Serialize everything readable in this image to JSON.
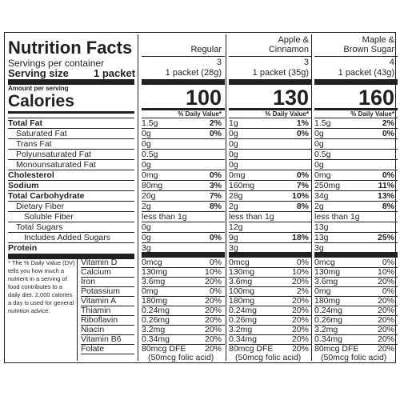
{
  "title": "Nutrition Facts",
  "servings_per_container_label": "Servings per container",
  "serving_size_label": "Serving size",
  "serving_size_value": "1 packet",
  "amount_per_serving": "Amount per serving",
  "calories_label": "Calories",
  "dv_header": "% Daily Value*",
  "columns": [
    {
      "name_line1": "Regular",
      "name_line2": "",
      "servings": "3",
      "serving_size": "1 packet (28g)",
      "calories": "100"
    },
    {
      "name_line1": "Apple &",
      "name_line2": "Cinnamon",
      "servings": "3",
      "serving_size": "1 packet (35g)",
      "calories": "130"
    },
    {
      "name_line1": "Maple &",
      "name_line2": "Brown Sugar",
      "servings": "4",
      "serving_size": "1 packet (43g)",
      "calories": "160"
    }
  ],
  "nutrients": [
    {
      "label": "Total Fat",
      "bold": true,
      "indent": 0,
      "values": [
        [
          "1.5g",
          "2%"
        ],
        [
          "1g",
          "1%"
        ],
        [
          "1.5g",
          "2%"
        ]
      ]
    },
    {
      "label": "Saturated Fat",
      "bold": false,
      "indent": 1,
      "values": [
        [
          "0g",
          "0%"
        ],
        [
          "0g",
          "0%"
        ],
        [
          "0g",
          "0%"
        ]
      ]
    },
    {
      "label": "Trans Fat",
      "bold": false,
      "indent": 1,
      "values": [
        [
          "0g",
          ""
        ],
        [
          "0g",
          ""
        ],
        [
          "0g",
          ""
        ]
      ]
    },
    {
      "label": "Polyunsaturated Fat",
      "bold": false,
      "indent": 1,
      "values": [
        [
          "0.5g",
          ""
        ],
        [
          "0g",
          ""
        ],
        [
          "0.5g",
          ""
        ]
      ]
    },
    {
      "label": "Monounsaturated Fat",
      "bold": false,
      "indent": 1,
      "values": [
        [
          "0g",
          ""
        ],
        [
          "0g",
          ""
        ],
        [
          "0g",
          ""
        ]
      ]
    },
    {
      "label": "Cholesterol",
      "bold": true,
      "indent": 0,
      "values": [
        [
          "0mg",
          "0%"
        ],
        [
          "0mg",
          "0%"
        ],
        [
          "0mg",
          "0%"
        ]
      ]
    },
    {
      "label": "Sodium",
      "bold": true,
      "indent": 0,
      "values": [
        [
          "80mg",
          "3%"
        ],
        [
          "160mg",
          "7%"
        ],
        [
          "250mg",
          "11%"
        ]
      ]
    },
    {
      "label": "Total Carbohydrate",
      "bold": true,
      "indent": 0,
      "values": [
        [
          "20g",
          "7%"
        ],
        [
          "28g",
          "10%"
        ],
        [
          "34g",
          "13%"
        ]
      ]
    },
    {
      "label": "Dietary Fiber",
      "bold": false,
      "indent": 1,
      "values": [
        [
          "2g",
          "8%"
        ],
        [
          "2g",
          "8%"
        ],
        [
          "2g",
          "8%"
        ]
      ]
    },
    {
      "label": "Soluble Fiber",
      "bold": false,
      "indent": 2,
      "values": [
        [
          "less than 1g",
          ""
        ],
        [
          "less than 1g",
          ""
        ],
        [
          "less than 1g",
          ""
        ]
      ]
    },
    {
      "label": "Total Sugars",
      "bold": false,
      "indent": 1,
      "values": [
        [
          "0g",
          ""
        ],
        [
          "12g",
          ""
        ],
        [
          "13g",
          ""
        ]
      ]
    },
    {
      "label": "Includes Added Sugars",
      "bold": false,
      "indent": 2,
      "values": [
        [
          "0g",
          "0%"
        ],
        [
          "9g",
          "18%"
        ],
        [
          "13g",
          "25%"
        ]
      ]
    },
    {
      "label": "Protein",
      "bold": true,
      "indent": 0,
      "values": [
        [
          "3g",
          ""
        ],
        [
          "3g",
          ""
        ],
        [
          "3g",
          ""
        ]
      ]
    }
  ],
  "footnote": [
    "* The % Daily Value (DV)",
    "tells you how much a",
    "nutrient in a serving of",
    "food contributes to a",
    "daily diet. 2,000 calories",
    "a day is used for general",
    "nutrition advice."
  ],
  "micros": [
    {
      "label": "Vitamin D",
      "values": [
        [
          "0mcg",
          "0%"
        ],
        [
          "0mcg",
          "0%"
        ],
        [
          "0mcg",
          "0%"
        ]
      ]
    },
    {
      "label": "Calcium",
      "values": [
        [
          "130mg",
          "10%"
        ],
        [
          "130mg",
          "10%"
        ],
        [
          "130mg",
          "10%"
        ]
      ]
    },
    {
      "label": "Iron",
      "values": [
        [
          "3.6mg",
          "20%"
        ],
        [
          "3.6mg",
          "20%"
        ],
        [
          "3.6mg",
          "20%"
        ]
      ]
    },
    {
      "label": "Potassium",
      "values": [
        [
          "0mg",
          "0%"
        ],
        [
          "100mg",
          "2%"
        ],
        [
          "0mg",
          "0%"
        ]
      ]
    },
    {
      "label": "Vitamin A",
      "values": [
        [
          "180mg",
          "20%"
        ],
        [
          "180mg",
          "20%"
        ],
        [
          "180mg",
          "20%"
        ]
      ]
    },
    {
      "label": "Thiamin",
      "values": [
        [
          "0.24mg",
          "20%"
        ],
        [
          "0.24mg",
          "20%"
        ],
        [
          "0.24mg",
          "20%"
        ]
      ]
    },
    {
      "label": "Riboflavin",
      "values": [
        [
          "0.26mg",
          "20%"
        ],
        [
          "0.26mg",
          "20%"
        ],
        [
          "0.26mg",
          "20%"
        ]
      ]
    },
    {
      "label": "Niacin",
      "values": [
        [
          "3.2mg",
          "20%"
        ],
        [
          "3.2mg",
          "20%"
        ],
        [
          "3.2mg",
          "20%"
        ]
      ]
    },
    {
      "label": "Vitamin B6",
      "values": [
        [
          "0.34mg",
          "20%"
        ],
        [
          "0.34mg",
          "20%"
        ],
        [
          "0.34mg",
          "20%"
        ]
      ]
    },
    {
      "label": "Folate",
      "values": [
        [
          "80mcg DFE",
          "20%"
        ],
        [
          "80mcg DFE",
          "20%"
        ],
        [
          "80mcg DFE",
          "20%"
        ]
      ],
      "sub": "(50mcg folic acid)"
    }
  ]
}
